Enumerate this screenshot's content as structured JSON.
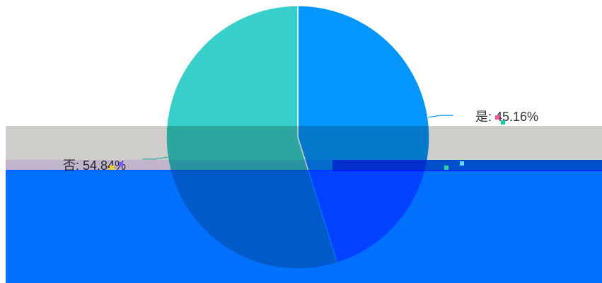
{
  "chart_data": {
    "type": "pie",
    "slices": [
      {
        "name": "是",
        "value": 45.16,
        "color": "#0496ff"
      },
      {
        "name": "否",
        "value": 54.84,
        "color": "#36cfc9"
      }
    ],
    "data_labels": [
      "是: 45.16%",
      "否: 54.84%"
    ]
  }
}
